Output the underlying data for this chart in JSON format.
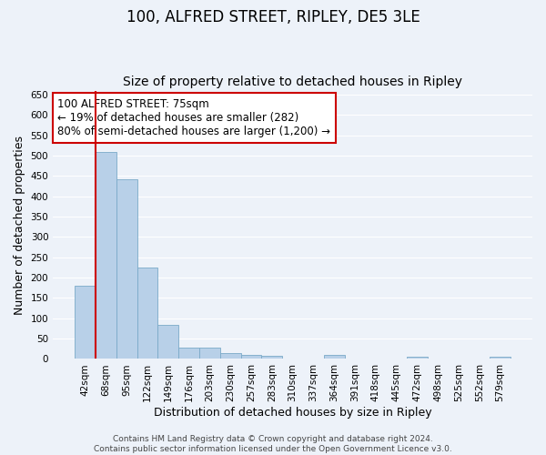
{
  "title": "100, ALFRED STREET, RIPLEY, DE5 3LE",
  "subtitle": "Size of property relative to detached houses in Ripley",
  "xlabel": "Distribution of detached houses by size in Ripley",
  "ylabel": "Number of detached properties",
  "categories": [
    "42sqm",
    "68sqm",
    "95sqm",
    "122sqm",
    "149sqm",
    "176sqm",
    "203sqm",
    "230sqm",
    "257sqm",
    "283sqm",
    "310sqm",
    "337sqm",
    "364sqm",
    "391sqm",
    "418sqm",
    "445sqm",
    "472sqm",
    "498sqm",
    "525sqm",
    "552sqm",
    "579sqm"
  ],
  "values": [
    181,
    510,
    441,
    225,
    84,
    28,
    28,
    15,
    9,
    7,
    1,
    0,
    9,
    0,
    0,
    0,
    5,
    0,
    0,
    0,
    5
  ],
  "bar_color": "#b8d0e8",
  "bar_edge_color": "#7aaac8",
  "vline_color": "#cc0000",
  "vline_x_index": 1,
  "ylim": [
    0,
    660
  ],
  "yticks": [
    0,
    50,
    100,
    150,
    200,
    250,
    300,
    350,
    400,
    450,
    500,
    550,
    600,
    650
  ],
  "annotation_line1": "100 ALFRED STREET: 75sqm",
  "annotation_line2": "← 19% of detached houses are smaller (282)",
  "annotation_line3": "80% of semi-detached houses are larger (1,200) →",
  "annotation_box_color": "#ffffff",
  "annotation_box_edge_color": "#cc0000",
  "footer_text": "Contains HM Land Registry data © Crown copyright and database right 2024.\nContains public sector information licensed under the Open Government Licence v3.0.",
  "background_color": "#edf2f9",
  "grid_color": "#ffffff",
  "title_fontsize": 12,
  "subtitle_fontsize": 10,
  "axis_label_fontsize": 9,
  "tick_fontsize": 7.5,
  "annotation_fontsize": 8.5,
  "footer_fontsize": 6.5
}
